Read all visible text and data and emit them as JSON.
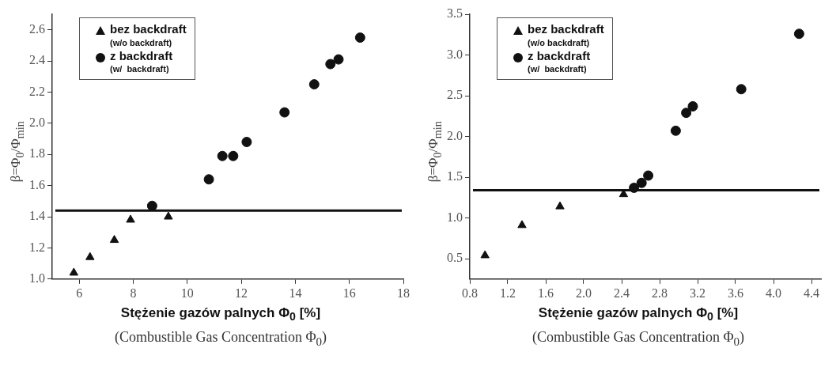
{
  "chart_data": [
    {
      "type": "scatter",
      "xlabel": "Stężenie gazów palnych Φ$_{0}$ [%]",
      "ylabel": "β=Φ$_{0}$/Φ$_{min}$",
      "annotations": [
        "(Combustible Gas Concentration Φ$_{0}$)"
      ],
      "xlim": [
        5,
        18
      ],
      "xticks": [
        6,
        8,
        10,
        12,
        14,
        16,
        18
      ],
      "ylim": [
        1.0,
        2.7
      ],
      "yticks": [
        {
          "value": 1.0,
          "label": "1.0"
        },
        1.2,
        1.4,
        1.6,
        1.8,
        {
          "value": 2.0,
          "label": "2.0"
        },
        2.2,
        2.4,
        2.6
      ],
      "grid": false,
      "legend": "top left",
      "series": [
        {
          "name": "bez backdraft\n(w/o backdraft)",
          "color": "#111111",
          "marker": "triangle",
          "x": [
            5.8,
            6.4,
            7.3,
            7.9,
            9.3
          ],
          "values": [
            1.04,
            1.14,
            1.25,
            1.38,
            1.4
          ]
        },
        {
          "name": "z backdraft\n(w/  backdraft)",
          "color": "#111111",
          "marker": "circle",
          "x": [
            8.7,
            10.8,
            11.3,
            11.7,
            12.2,
            13.6,
            14.7,
            15.3,
            15.6,
            16.4
          ],
          "values": [
            1.47,
            1.64,
            1.79,
            1.79,
            1.88,
            2.07,
            2.25,
            2.38,
            2.41,
            2.55
          ]
        }
      ],
      "ref_lines": [
        {
          "axis": "y",
          "value": 1.44,
          "color": "#111111"
        }
      ]
    },
    {
      "type": "scatter",
      "xlabel": "Stężenie gazów palnych Φ$_{0}$ [%]",
      "ylabel": "β=Φ$_{0}$/Φ$_{min}$",
      "annotations": [
        "(Combustible Gas Concentration Φ$_{0}$)"
      ],
      "xlim": [
        0.8,
        4.5
      ],
      "xticks": [
        0.8,
        1.2,
        1.6,
        {
          "value": 2.0,
          "label": "2.0"
        },
        2.4,
        2.8,
        3.2,
        3.6,
        {
          "value": 4.0,
          "label": "4.0"
        },
        4.4
      ],
      "ylim": [
        0.25,
        3.5
      ],
      "yticks": [
        0.5,
        {
          "value": 1.0,
          "label": "1.0"
        },
        1.5,
        {
          "value": 2.0,
          "label": "2.0"
        },
        2.5,
        {
          "value": 3.0,
          "label": "3.0"
        },
        3.5
      ],
      "grid": false,
      "legend": "top left",
      "series": [
        {
          "name": "bez backdraft\n(w/o backdraft)",
          "color": "#111111",
          "marker": "triangle",
          "x": [
            0.96,
            1.35,
            1.75,
            2.42
          ],
          "values": [
            0.54,
            0.91,
            1.14,
            1.29
          ]
        },
        {
          "name": "z backdraft\n(w/  backdraft)",
          "color": "#111111",
          "marker": "circle",
          "x": [
            2.53,
            2.61,
            2.68,
            2.97,
            3.08,
            3.15,
            3.66,
            4.27
          ],
          "values": [
            1.37,
            1.43,
            1.52,
            2.07,
            2.29,
            2.37,
            2.58,
            3.26
          ]
        }
      ],
      "ref_lines": [
        {
          "axis": "y",
          "value": 1.34,
          "color": "#111111"
        }
      ]
    }
  ]
}
